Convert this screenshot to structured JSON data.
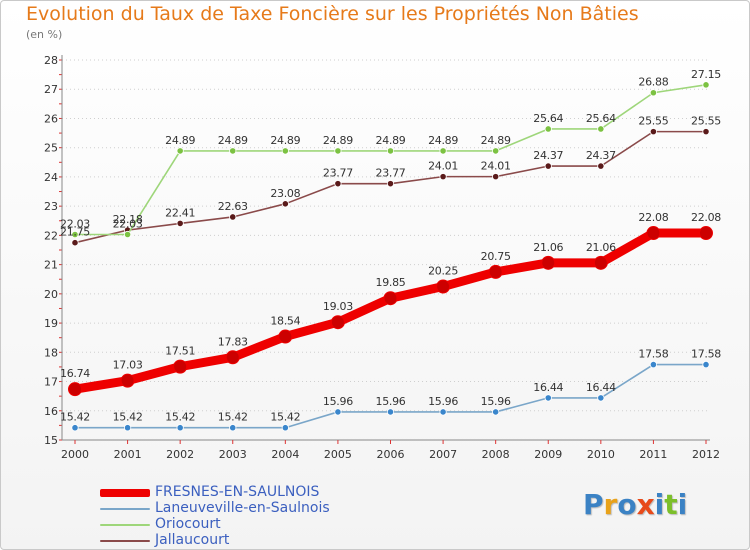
{
  "title": "Evolution du Taux de Taxe Foncière sur les Propriétés Non Bâties",
  "subtitle": "(en %)",
  "logo": {
    "text": "Proxiti",
    "colors": [
      "#3b82c4",
      "#e8a21a",
      "#3b82c4",
      "#e84a1a",
      "#3b82c4",
      "#7cbf2a",
      "#3b82c4"
    ]
  },
  "chart_data": {
    "type": "line",
    "title": "Evolution du Taux de Taxe Foncière sur les Propriétés Non Bâties",
    "ylabel": "(en %)",
    "x": [
      "2000",
      "2001",
      "2002",
      "2003",
      "2004",
      "2005",
      "2006",
      "2007",
      "2008",
      "2009",
      "2010",
      "2011",
      "2012"
    ],
    "ylim": [
      15,
      28
    ],
    "yticks": [
      "15",
      "16",
      "17",
      "18",
      "19",
      "20",
      "21",
      "22",
      "23",
      "24",
      "25",
      "26",
      "27",
      "28"
    ],
    "grid": "horizontal dotted",
    "legend_position": "bottom-left",
    "series": [
      {
        "name": "FRESNES-EN-SAULNOIS",
        "color": "#ee0000",
        "point_color": "#cc0000",
        "width": 9,
        "values": [
          16.74,
          17.03,
          17.51,
          17.83,
          18.54,
          19.03,
          19.85,
          20.25,
          20.75,
          21.06,
          21.06,
          22.08,
          22.08
        ],
        "labels": [
          "16.74",
          "17.03",
          "17.51",
          "17.83",
          "18.54",
          "19.03",
          "19.85",
          "20.25",
          "20.75",
          "21.06",
          "21.06",
          "22.08",
          "22.08"
        ]
      },
      {
        "name": "Laneuveville-en-Saulnois",
        "color": "#7aa6c9",
        "point_color": "#3a86cc",
        "width": 1.6,
        "values": [
          15.42,
          15.42,
          15.42,
          15.42,
          15.42,
          15.96,
          15.96,
          15.96,
          15.96,
          16.44,
          16.44,
          17.58,
          17.58
        ],
        "labels": [
          "15.42",
          "15.42",
          "15.42",
          "15.42",
          "15.42",
          "15.96",
          "15.96",
          "15.96",
          "15.96",
          "16.44",
          "16.44",
          "17.58",
          "17.58"
        ]
      },
      {
        "name": "Oriocourt",
        "color": "#9ed67a",
        "point_color": "#7cc242",
        "width": 1.6,
        "values": [
          22.03,
          22.03,
          24.89,
          24.89,
          24.89,
          24.89,
          24.89,
          24.89,
          24.89,
          25.64,
          25.64,
          26.88,
          27.15
        ],
        "labels": [
          "22.03",
          "22.03",
          "24.89",
          "24.89",
          "24.89",
          "24.89",
          "24.89",
          "24.89",
          "24.89",
          "25.64",
          "25.64",
          "26.88",
          "27.15"
        ]
      },
      {
        "name": "Jallaucourt",
        "color": "#8a4a4a",
        "point_color": "#5a1a1a",
        "width": 1.6,
        "values": [
          21.75,
          22.18,
          22.41,
          22.63,
          23.08,
          23.77,
          23.77,
          24.01,
          24.01,
          24.37,
          24.37,
          25.55,
          25.55
        ],
        "labels": [
          "21.75",
          "22.18",
          "22.41",
          "22.63",
          "23.08",
          "23.77",
          "23.77",
          "24.01",
          "24.01",
          "24.37",
          "24.37",
          "25.55",
          "25.55"
        ]
      }
    ]
  }
}
